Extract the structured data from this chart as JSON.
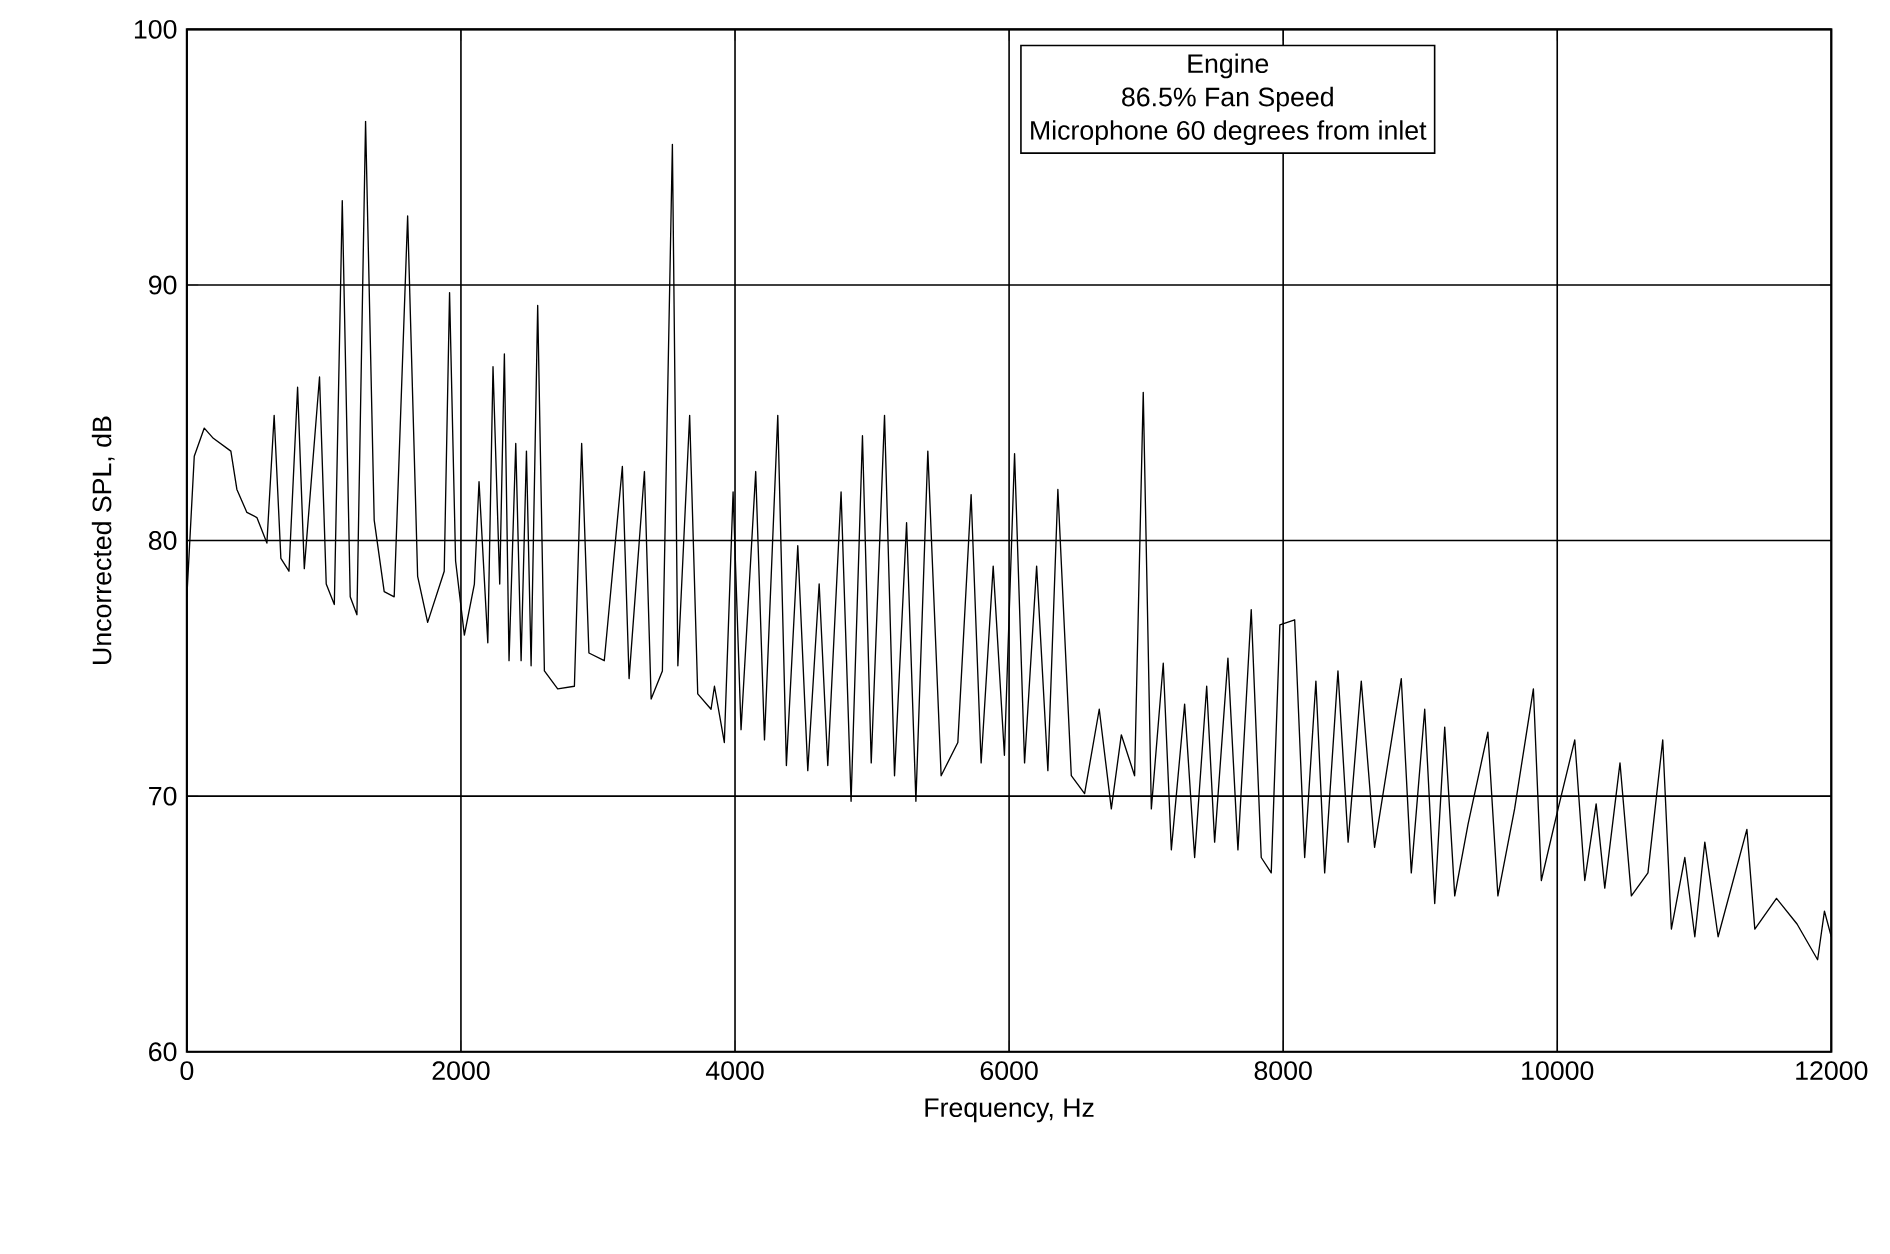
{
  "chart_data": {
    "type": "line",
    "xlabel": "Frequency, Hz",
    "ylabel": "Uncorrected SPL, dB",
    "annotations": [
      "Engine",
      "86.5% Fan Speed",
      "Microphone 60 degrees from inlet"
    ],
    "xlim": [
      0,
      12000
    ],
    "ylim": [
      60,
      100
    ],
    "xticks": [
      0,
      2000,
      4000,
      6000,
      8000,
      10000,
      12000
    ],
    "yticks": [
      60,
      70,
      80,
      90,
      100
    ],
    "grid": true,
    "marker": "none",
    "line_style": "solid",
    "series": [
      {
        "color": "#000000",
        "x": [
          0,
          54,
          127,
          193,
          321,
          365,
          438,
          511,
          584,
          637,
          686,
          745,
          808,
          857,
          968,
          1017,
          1076,
          1134,
          1192,
          1241,
          1304,
          1367,
          1440,
          1513,
          1611,
          1684,
          1757,
          1878,
          1917,
          1961,
          2025,
          2098,
          2132,
          2196,
          2234,
          2283,
          2317,
          2351,
          2400,
          2439,
          2478,
          2512,
          2560,
          2609,
          2706,
          2828,
          2881,
          2934,
          3046,
          3178,
          3227,
          3339,
          3388,
          3470,
          3543,
          3583,
          3669,
          3728,
          3825,
          3850,
          3922,
          3986,
          4044,
          4151,
          4215,
          4312,
          4375,
          4458,
          4531,
          4614,
          4677,
          4774,
          4847,
          4930,
          4994,
          5091,
          5164,
          5252,
          5320,
          5407,
          5504,
          5626,
          5723,
          5796,
          5884,
          5966,
          6040,
          6113,
          6201,
          6283,
          6356,
          6454,
          6551,
          6658,
          6746,
          6819,
          6916,
          6979,
          7038,
          7125,
          7184,
          7281,
          7354,
          7442,
          7500,
          7597,
          7670,
          7767,
          7840,
          7913,
          7976,
          8084,
          8157,
          8239,
          8303,
          8400,
          8474,
          8570,
          8667,
          8862,
          8935,
          9033,
          9106,
          9179,
          9252,
          9349,
          9494,
          9567,
          9689,
          9826,
          9884,
          10006,
          10128,
          10201,
          10284,
          10347,
          10458,
          10541,
          10662,
          10770,
          10833,
          10931,
          11004,
          11077,
          11174,
          11384,
          11442,
          11600,
          11750,
          11900,
          11950,
          12000
        ],
        "values": [
          77.8,
          83.3,
          84.4,
          84,
          83.5,
          82,
          81.1,
          80.9,
          79.9,
          84.9,
          79.3,
          78.8,
          86,
          78.9,
          86.4,
          78.3,
          77.5,
          93.3,
          77.8,
          77.1,
          96.4,
          80.8,
          78,
          77.8,
          92.7,
          78.6,
          76.8,
          78.8,
          89.7,
          79.2,
          76.3,
          78.3,
          82.3,
          76,
          86.8,
          78.3,
          87.3,
          75.3,
          83.8,
          75.3,
          83.5,
          75.1,
          89.2,
          74.9,
          74.2,
          74.3,
          83.8,
          75.6,
          75.3,
          82.9,
          74.6,
          82.7,
          73.8,
          74.9,
          95.5,
          75.1,
          84.9,
          74,
          73.4,
          74.3,
          72.1,
          81.9,
          72.6,
          82.7,
          72.2,
          84.9,
          71.2,
          79.8,
          71,
          78.3,
          71.2,
          81.9,
          69.8,
          84.1,
          71.3,
          84.9,
          70.8,
          80.7,
          69.8,
          83.5,
          70.8,
          72.1,
          81.8,
          71.3,
          79,
          71.6,
          83.4,
          71.3,
          79,
          71,
          82,
          70.8,
          70.1,
          73.4,
          69.5,
          72.4,
          70.8,
          85.8,
          69.5,
          75.2,
          67.9,
          73.6,
          67.6,
          74.3,
          68.2,
          75.4,
          67.9,
          77.3,
          67.6,
          67,
          76.7,
          76.9,
          67.6,
          74.5,
          67,
          74.9,
          68.2,
          74.5,
          68,
          74.6,
          67,
          73.4,
          65.8,
          72.7,
          66.1,
          68.9,
          72.5,
          66.1,
          69.5,
          74.2,
          66.7,
          69.5,
          72.2,
          66.7,
          69.7,
          66.4,
          71.3,
          66.1,
          67,
          72.2,
          64.8,
          67.6,
          64.5,
          68.2,
          64.5,
          68.7,
          64.8,
          66,
          65,
          63.6,
          65.5,
          64.5
        ]
      }
    ]
  }
}
